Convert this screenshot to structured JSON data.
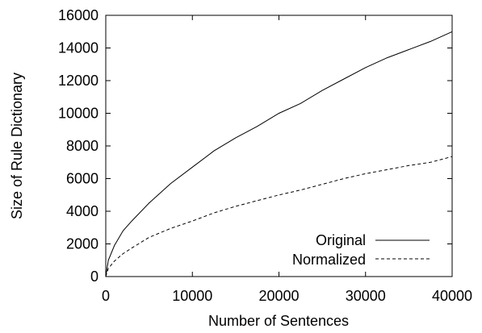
{
  "chart_data": {
    "type": "line",
    "xlabel": "Number of Sentences",
    "ylabel": "Size of Rule Dictionary",
    "xlim": [
      0,
      40000
    ],
    "ylim": [
      0,
      16000
    ],
    "xticks": [
      0,
      10000,
      20000,
      30000,
      40000
    ],
    "yticks": [
      0,
      2000,
      4000,
      6000,
      8000,
      10000,
      12000,
      14000,
      16000
    ],
    "grid": false,
    "legend_position": "bottom-right",
    "series": [
      {
        "name": "Original",
        "style": "solid",
        "color": "#000000",
        "x": [
          0,
          300,
          1000,
          2000,
          3000,
          5000,
          7500,
          10000,
          12500,
          15000,
          17500,
          20000,
          22500,
          25000,
          27500,
          30000,
          32500,
          35000,
          37500,
          40000
        ],
        "y": [
          0,
          1000,
          1900,
          2800,
          3400,
          4500,
          5700,
          6700,
          7700,
          8500,
          9200,
          10000,
          10600,
          11400,
          12100,
          12800,
          13400,
          13900,
          14400,
          15000
        ]
      },
      {
        "name": "Normalized",
        "style": "dashed",
        "color": "#000000",
        "x": [
          0,
          300,
          1000,
          2000,
          3000,
          5000,
          7500,
          10000,
          12500,
          15000,
          17500,
          20000,
          22500,
          25000,
          27500,
          30000,
          32500,
          35000,
          37500,
          40000
        ],
        "y": [
          0,
          500,
          950,
          1400,
          1750,
          2400,
          2950,
          3400,
          3900,
          4300,
          4650,
          5000,
          5300,
          5650,
          6000,
          6300,
          6550,
          6800,
          7000,
          7350
        ]
      }
    ]
  }
}
